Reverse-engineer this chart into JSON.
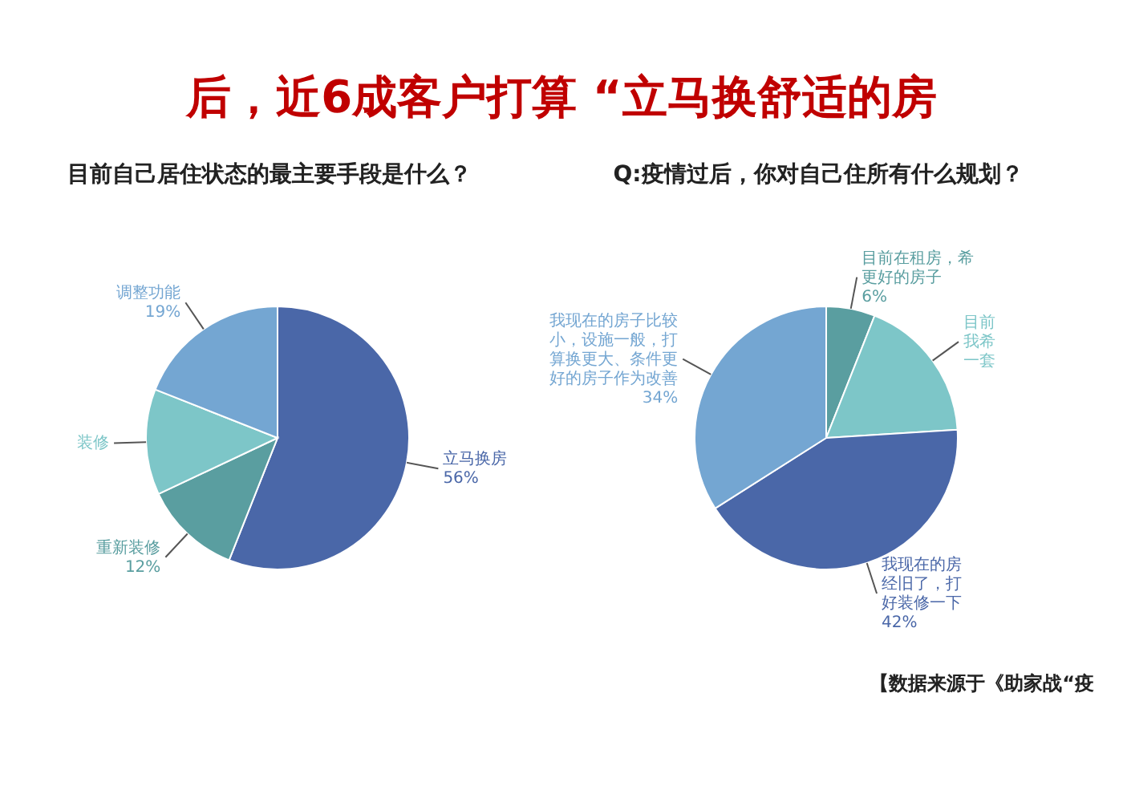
{
  "chart_data": [
    {
      "type": "pie",
      "title": "后，近6成客户打算 “立马换舒适的房",
      "subtitle": "目前自己居住状态的最主要手段是什么？",
      "categories": [
        "立马换房",
        "重新装修",
        "装修",
        "调整功能"
      ],
      "values": [
        56,
        12,
        13,
        19
      ],
      "value_labels": [
        "56%",
        "12%",
        null,
        "19%"
      ],
      "colors": [
        "#4a67a8",
        "#5a9ea0",
        "#7dc6c8",
        "#74a6d2"
      ]
    },
    {
      "type": "pie",
      "subtitle": "Q:疫情过后，你对自己住所有什么规划？",
      "categories": [
        "目前在租房，希更好的房子",
        "目前我希一套",
        "我现在的房经旧了，打好装修一下",
        "我现在的房子比较小，设施一般，打算换更大、条件更好的房子作为改善"
      ],
      "values": [
        6,
        18,
        42,
        34
      ],
      "value_labels": [
        "6%",
        null,
        "42%",
        "34%"
      ],
      "colors": [
        "#5a9ea0",
        "#7dc6c8",
        "#4a67a8",
        "#74a6d2"
      ],
      "annotations": [
        "【数据来源于《助家战“疫"
      ]
    }
  ]
}
